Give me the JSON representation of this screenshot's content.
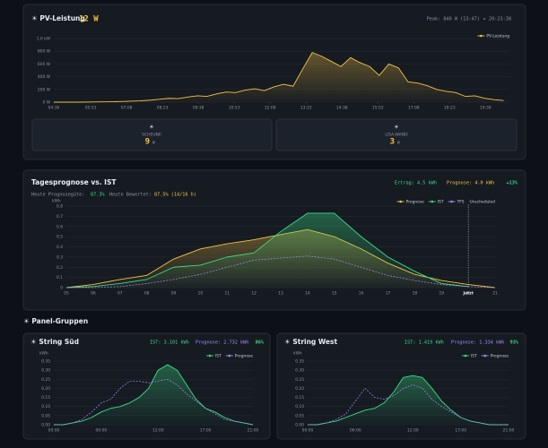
{
  "pv_panel": {
    "title": "☀ PV-Leistung",
    "current": "12 W",
    "peak": "Peak: 840 W (13:47)",
    "clock": "20:23:38"
  },
  "sources": [
    {
      "icon": "☀",
      "name": "SCHEUNE",
      "value": "9",
      "unit": "W"
    },
    {
      "icon": "☀",
      "name": "LISA-WAND",
      "value": "3",
      "unit": "W"
    }
  ],
  "forecast": {
    "title": "Tagesprognose vs. IST",
    "yield": "Ertrag: 4.5 kWh",
    "forecast": "Prognose: 4.0 kWh",
    "delta": "+13%",
    "quality_label": "Heute Prognosegüte:",
    "quality_value": "87.3%",
    "rated_label": "Heute Bewertet:",
    "rated_value": "87.5% (14/16 h)"
  },
  "section": "☀ Panel-Gruppen",
  "strings": [
    {
      "title": "☀ String Süd",
      "ist": "IST: 3.101 kWh",
      "prognose": "Prognose: 2.732 kWh",
      "pct": "86%"
    },
    {
      "title": "☀ String West",
      "ist": "IST: 1.419 kWh",
      "prognose": "Prognose: 1.334 kWh",
      "pct": "93%"
    }
  ],
  "chart_data": [
    {
      "type": "area",
      "x": [
        276,
        296,
        316,
        336,
        356,
        376,
        396,
        416,
        436,
        456,
        476,
        496,
        516,
        536,
        556,
        576,
        596,
        616,
        636,
        656,
        676,
        696,
        716,
        736,
        756,
        776,
        796,
        816,
        836,
        856,
        876,
        896,
        916,
        936,
        956,
        976,
        996,
        1016,
        1036,
        1056,
        1076,
        1096,
        1116,
        1136,
        1156,
        1176,
        1196,
        1216
      ],
      "xlim": [
        276,
        1228
      ],
      "xticks": [
        {
          "value": 276,
          "label": "04:36"
        },
        {
          "value": 353,
          "label": "05:53"
        },
        {
          "value": 428,
          "label": "07:08"
        },
        {
          "value": 503,
          "label": "08:23"
        },
        {
          "value": 578,
          "label": "09:38"
        },
        {
          "value": 653,
          "label": "10:53"
        },
        {
          "value": 728,
          "label": "12:08"
        },
        {
          "value": 803,
          "label": "13:23"
        },
        {
          "value": 878,
          "label": "14:38"
        },
        {
          "value": 953,
          "label": "15:53"
        },
        {
          "value": 1028,
          "label": "17:08"
        },
        {
          "value": 1103,
          "label": "18:23"
        },
        {
          "value": 1178,
          "label": "19:38"
        }
      ],
      "ylim": [
        0,
        1000
      ],
      "yticks": [
        {
          "value": 0,
          "label": "0 W"
        },
        {
          "value": 200,
          "label": "200 W"
        },
        {
          "value": 400,
          "label": "400 W"
        },
        {
          "value": 600,
          "label": "600 W"
        },
        {
          "value": 800,
          "label": "800 W"
        },
        {
          "value": 1000,
          "label": "1.0 kW"
        }
      ],
      "grid": true,
      "series": [
        {
          "name": "PV-Leistung",
          "color": "#f5c242",
          "fill": true,
          "values": [
            0,
            0,
            0,
            0,
            2,
            4,
            6,
            10,
            15,
            20,
            30,
            45,
            60,
            55,
            80,
            100,
            90,
            130,
            160,
            150,
            190,
            210,
            180,
            240,
            280,
            250,
            520,
            780,
            720,
            640,
            560,
            700,
            620,
            560,
            420,
            600,
            540,
            320,
            300,
            260,
            200,
            170,
            150,
            90,
            100,
            60,
            40,
            25
          ]
        }
      ]
    },
    {
      "type": "line",
      "categories": [
        "05",
        "06",
        "07",
        "08",
        "09",
        "10",
        "11",
        "12",
        "13",
        "14",
        "15",
        "16",
        "17",
        "18",
        "19",
        "20",
        "21"
      ],
      "ylim": [
        0,
        0.8
      ],
      "yticks": [
        0,
        0.1,
        0.2,
        0.3,
        0.4,
        0.5,
        0.6,
        0.7,
        0.8
      ],
      "y_label": "kWh",
      "grid": true,
      "legend_extra": "Unscheduled",
      "annotation": {
        "text": "Jetzt",
        "at": "20"
      },
      "series": [
        {
          "name": "Prognose",
          "color": "#f5c242",
          "fill": true,
          "values": [
            0,
            0.03,
            0.08,
            0.12,
            0.28,
            0.38,
            0.43,
            0.47,
            0.52,
            0.57,
            0.5,
            0.38,
            0.24,
            0.13,
            0.07,
            0.03,
            0
          ]
        },
        {
          "name": "IST",
          "color": "#3ddc84",
          "fill": true,
          "values": [
            0,
            0.01,
            0.04,
            0.08,
            0.2,
            0.22,
            0.3,
            0.34,
            0.55,
            0.73,
            0.73,
            0.5,
            0.3,
            0.16,
            0.04,
            0.01,
            null
          ]
        },
        {
          "name": "TFS",
          "color": "#a78bfa",
          "dashed": true,
          "values": [
            0,
            0,
            0.01,
            0.04,
            0.08,
            0.13,
            0.2,
            0.27,
            0.29,
            0.31,
            0.28,
            0.2,
            0.12,
            0.07,
            0.03,
            0.01,
            0
          ]
        }
      ]
    },
    {
      "type": "line",
      "categories": [
        "00:00",
        null,
        null,
        null,
        null,
        "06:00",
        null,
        null,
        null,
        null,
        null,
        "12:00",
        null,
        null,
        null,
        null,
        "17:00",
        null,
        null,
        null,
        null,
        "21:00"
      ],
      "ylim": [
        0,
        0.35
      ],
      "yticks": [
        {
          "value": 0,
          "label": "0.00"
        },
        {
          "value": 0.05,
          "label": "0.05"
        },
        {
          "value": 0.1,
          "label": "0.10"
        },
        {
          "value": 0.15,
          "label": "0.15"
        },
        {
          "value": 0.2,
          "label": "0.20"
        },
        {
          "value": 0.25,
          "label": "0.25"
        },
        {
          "value": 0.3,
          "label": "0.30"
        },
        {
          "value": 0.35,
          "label": "0.35"
        }
      ],
      "y_label": "kWh",
      "grid": true,
      "series": [
        {
          "name": "IST",
          "color": "#3ddc84",
          "fill": true,
          "values": [
            0,
            0,
            0.01,
            0.02,
            0.04,
            0.07,
            0.09,
            0.1,
            0.12,
            0.15,
            0.2,
            0.3,
            0.33,
            0.3,
            0.22,
            0.14,
            0.09,
            0.07,
            0.04,
            0.02,
            0.01,
            0
          ]
        },
        {
          "name": "Prognose",
          "color": "#a78bfa",
          "dashed": true,
          "values": [
            0,
            0,
            0.01,
            0.03,
            0.07,
            0.12,
            0.14,
            0.2,
            0.24,
            0.24,
            0.23,
            0.24,
            0.25,
            0.22,
            0.17,
            0.13,
            0.09,
            0.06,
            0.03,
            0.02,
            0.01,
            0
          ]
        }
      ]
    },
    {
      "type": "line",
      "categories": [
        "00:00",
        null,
        null,
        null,
        null,
        "06:00",
        null,
        null,
        null,
        null,
        null,
        "12:00",
        null,
        null,
        null,
        null,
        "17:00",
        null,
        null,
        null,
        null,
        "21:00"
      ],
      "ylim": [
        0,
        0.35
      ],
      "yticks": [
        {
          "value": 0,
          "label": "0.00"
        },
        {
          "value": 0.05,
          "label": "0.05"
        },
        {
          "value": 0.1,
          "label": "0.10"
        },
        {
          "value": 0.15,
          "label": "0.15"
        },
        {
          "value": 0.2,
          "label": "0.20"
        },
        {
          "value": 0.25,
          "label": "0.25"
        },
        {
          "value": 0.3,
          "label": "0.30"
        },
        {
          "value": 0.35,
          "label": "0.35"
        }
      ],
      "y_label": "kWh",
      "grid": true,
      "series": [
        {
          "name": "IST",
          "color": "#3ddc84",
          "fill": true,
          "values": [
            0,
            0,
            0.01,
            0.02,
            0.04,
            0.06,
            0.08,
            0.09,
            0.12,
            0.18,
            0.26,
            0.27,
            0.26,
            0.2,
            0.13,
            0.08,
            0.04,
            0.02,
            0.01,
            0,
            0,
            0
          ]
        },
        {
          "name": "Prognose",
          "color": "#a78bfa",
          "dashed": true,
          "values": [
            0,
            0,
            0.01,
            0.03,
            0.06,
            0.13,
            0.2,
            0.15,
            0.14,
            0.16,
            0.2,
            0.22,
            0.2,
            0.14,
            0.1,
            0.07,
            0.04,
            0.02,
            0.01,
            0,
            0,
            0
          ]
        }
      ]
    }
  ]
}
